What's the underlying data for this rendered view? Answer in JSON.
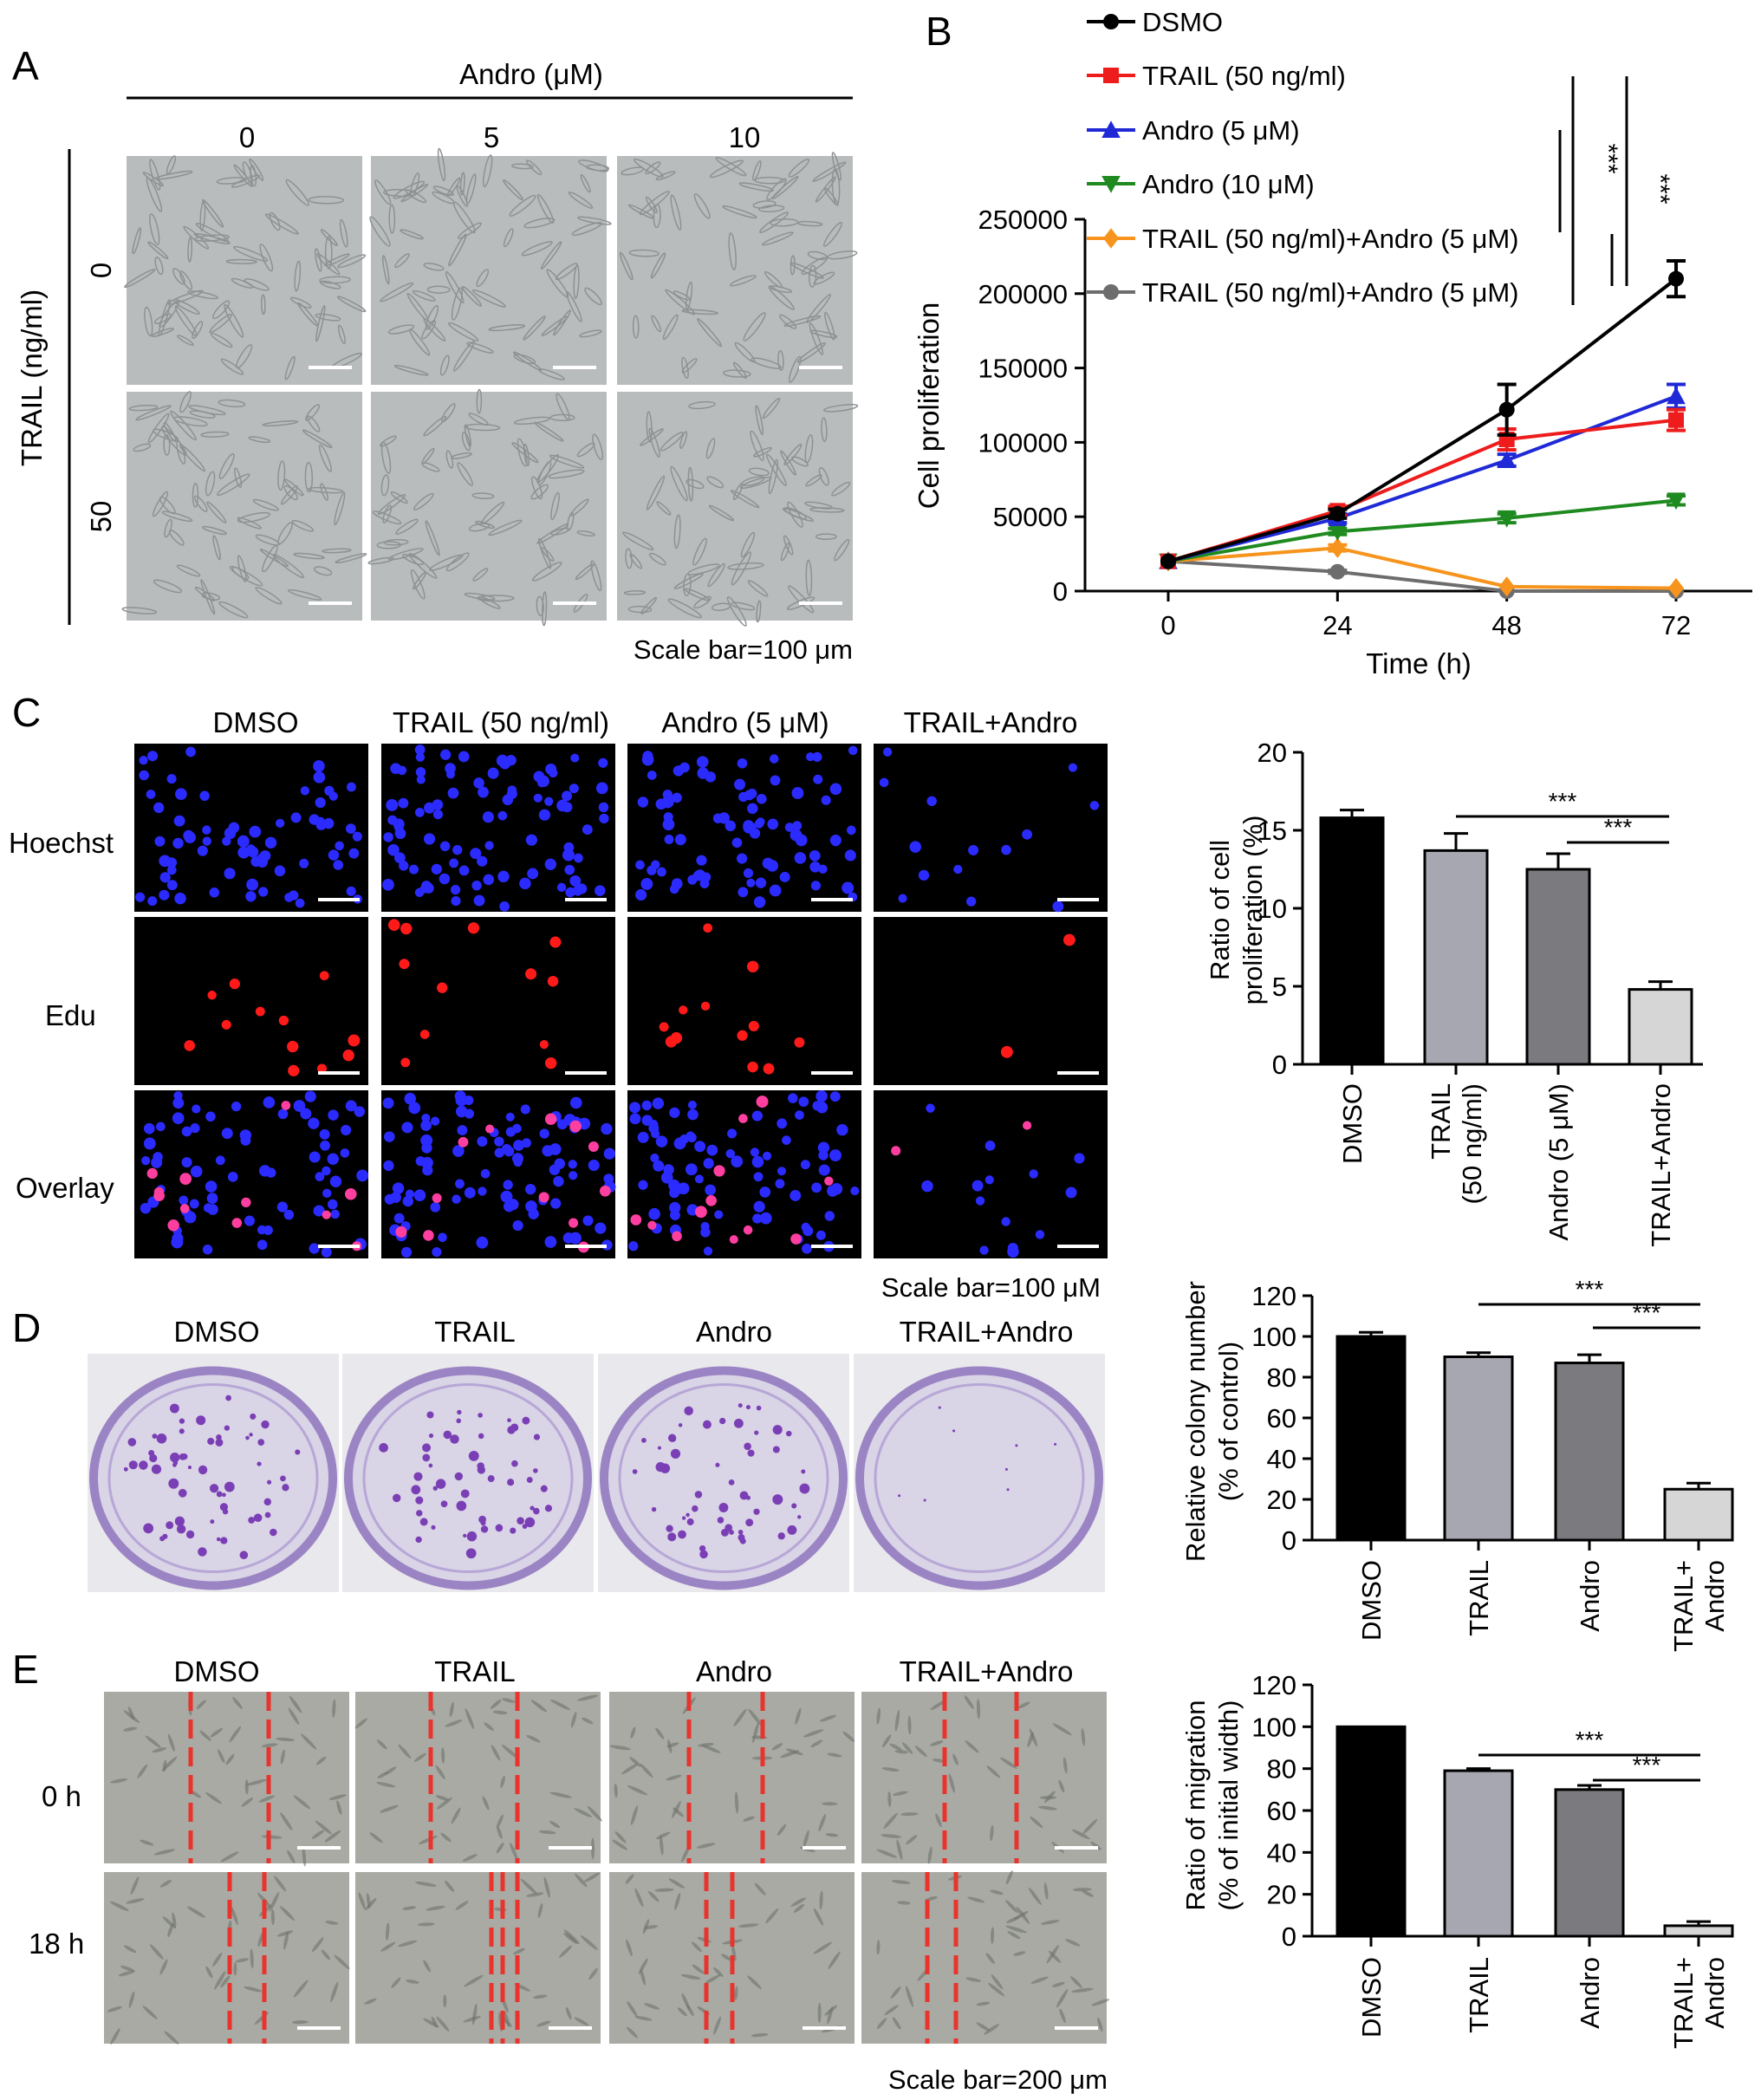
{
  "panel_labels": {
    "A": "A",
    "B": "B",
    "C": "C",
    "D": "D",
    "E": "E"
  },
  "panel_a": {
    "header": "Andro (μM)",
    "columns": [
      "0",
      "5",
      "10"
    ],
    "row_axis": "TRAIL (ng/ml)",
    "rows": [
      "0",
      "50"
    ],
    "scale_bar": "Scale bar=100 μm",
    "image_tone": "#b9bcbc"
  },
  "panel_c": {
    "columns": [
      "DMSO",
      "TRAIL (50 ng/ml)",
      "Andro (5 μM)",
      "TRAIL+Andro"
    ],
    "rows": [
      "Hoechst",
      "Edu",
      "Overlay"
    ],
    "scale_bar": "Scale bar=100 μM",
    "colors": {
      "hoechst": "#2b2bff",
      "edu": "#ff1a1a",
      "overlay": "#ff3fa0",
      "background": "#000000"
    }
  },
  "panel_d": {
    "columns": [
      "DMSO",
      "TRAIL",
      "Andro",
      "TRAIL+Andro"
    ],
    "colors": {
      "plate": "#d9d4e6",
      "stain": "#7b3fb5",
      "background": "#e9e8ec"
    }
  },
  "panel_e": {
    "columns": [
      "DMSO",
      "TRAIL",
      "Andro",
      "TRAIL+Andro"
    ],
    "rows": [
      "0 h",
      "18 h"
    ],
    "scale_bar": "Scale bar=200 μm",
    "colors": {
      "wound_line": "#e8342c",
      "image": "#a9aaa4"
    }
  },
  "chart_data": [
    {
      "panel": "B",
      "type": "line",
      "xlabel": "Time (h)",
      "ylabel": "Cell proliferation",
      "x": [
        0,
        24,
        48,
        72
      ],
      "xticks": [
        "0",
        "24",
        "48",
        "72"
      ],
      "ylim": [
        0,
        250000
      ],
      "yticks": [
        "0",
        "50000",
        "100000",
        "150000",
        "200000",
        "250000"
      ],
      "legend_position": "top",
      "series": [
        {
          "name": "DSMO",
          "color": "#000000",
          "marker": "circle",
          "values": [
            20000,
            52000,
            122000,
            210000
          ],
          "errors": [
            0,
            3000,
            17000,
            12000
          ]
        },
        {
          "name": "TRAIL (50 ng/ml)",
          "color": "#ee1c1c",
          "marker": "square",
          "values": [
            20000,
            54000,
            102000,
            115000
          ],
          "errors": [
            0,
            3000,
            7000,
            7000
          ]
        },
        {
          "name": "Andro (5 μM)",
          "color": "#1f2ad6",
          "marker": "triangle-up",
          "values": [
            20000,
            49000,
            88000,
            131000
          ],
          "errors": [
            0,
            3000,
            4000,
            8000
          ]
        },
        {
          "name": "Andro (10 μM)",
          "color": "#1f8a1f",
          "marker": "triangle-down",
          "values": [
            20000,
            40000,
            49000,
            61000
          ],
          "errors": [
            0,
            2000,
            3000,
            3000
          ]
        },
        {
          "name": "TRAIL (50 ng/ml)+Andro (5 μM)",
          "color": "#f7941d",
          "marker": "diamond",
          "values": [
            20000,
            29000,
            3000,
            2000
          ],
          "errors": [
            0,
            2000,
            0,
            0
          ]
        },
        {
          "name": "TRAIL (50 ng/ml)+Andro (5 μM)",
          "color": "#6d6d6d",
          "marker": "circle",
          "values": [
            20000,
            13000,
            0,
            0
          ],
          "errors": [
            0,
            1000,
            0,
            0
          ]
        }
      ],
      "significance": [
        "***",
        "***"
      ]
    },
    {
      "panel": "C",
      "type": "bar",
      "ylabel": "Ratio of cell proliferation (%)",
      "ylabel_lines": [
        "Ratio of cell",
        "proliferation (%)"
      ],
      "categories": [
        "DMSO",
        "TRAIL (50 ng/ml)",
        "Andro (5 μM)",
        "TRAIL+Andro"
      ],
      "category_lines": [
        [
          "DMSO"
        ],
        [
          "TRAIL",
          "(50 ng/ml)"
        ],
        [
          "Andro (5 μM)"
        ],
        [
          "TRAIL+Andro"
        ]
      ],
      "values": [
        15.8,
        13.7,
        12.5,
        4.8
      ],
      "errors": [
        0.5,
        1.1,
        1.0,
        0.5
      ],
      "colors": [
        "#000000",
        "#a7a7b1",
        "#7a7a7f",
        "#d6d6d6"
      ],
      "ylim": [
        0,
        20
      ],
      "yticks": [
        "0",
        "5",
        "10",
        "15",
        "20"
      ],
      "significance": [
        "***",
        "***"
      ]
    },
    {
      "panel": "D",
      "type": "bar",
      "ylabel": "Relative colony number (% of control)",
      "ylabel_lines": [
        "Relative colony number",
        "(% of control)"
      ],
      "categories": [
        "DMSO",
        "TRAIL",
        "Andro",
        "TRAIL+Andro"
      ],
      "category_lines": [
        [
          "DMSO"
        ],
        [
          "TRAIL"
        ],
        [
          "Andro"
        ],
        [
          "TRAIL+",
          "Andro"
        ]
      ],
      "values": [
        100,
        90,
        87,
        25
      ],
      "errors": [
        2,
        2,
        4,
        3
      ],
      "colors": [
        "#000000",
        "#a7a7b1",
        "#7a7a7f",
        "#d6d6d6"
      ],
      "ylim": [
        0,
        120
      ],
      "yticks": [
        "0",
        "20",
        "40",
        "60",
        "80",
        "100",
        "120"
      ],
      "significance": [
        "***",
        "***"
      ]
    },
    {
      "panel": "E",
      "type": "bar",
      "ylabel": "Ratio of migration (% of initial width)",
      "ylabel_lines": [
        "Ratio of migration",
        "(% of initial width)"
      ],
      "categories": [
        "DMSO",
        "TRAIL",
        "Andro",
        "TRAIL+Andro"
      ],
      "category_lines": [
        [
          "DMSO"
        ],
        [
          "TRAIL"
        ],
        [
          "Andro"
        ],
        [
          "TRAIL+",
          "Andro"
        ]
      ],
      "values": [
        100,
        79,
        70,
        5
      ],
      "errors": [
        0,
        1,
        2,
        2
      ],
      "colors": [
        "#000000",
        "#a7a7b1",
        "#7a7a7f",
        "#d6d6d6"
      ],
      "ylim": [
        0,
        120
      ],
      "yticks": [
        "0",
        "20",
        "40",
        "60",
        "80",
        "100",
        "120"
      ],
      "significance": [
        "***",
        "***"
      ]
    }
  ]
}
